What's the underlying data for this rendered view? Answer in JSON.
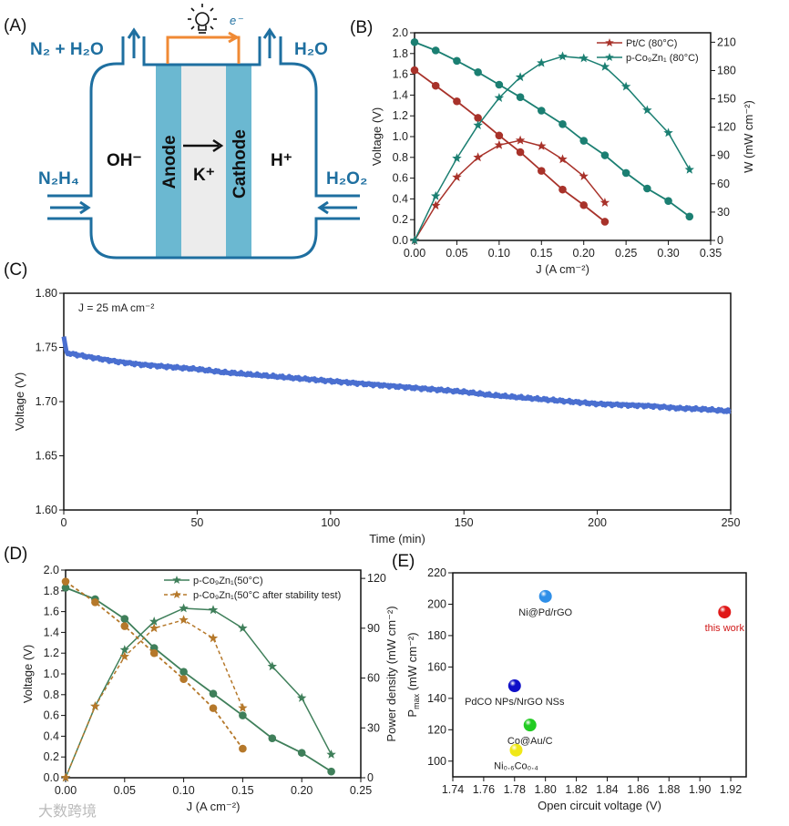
{
  "panel_labels": {
    "a": "(A)",
    "b": "(B)",
    "c": "(C)",
    "d": "(D)",
    "e": "(E)"
  },
  "diagram": {
    "outlet_left": "N₂ + H₂O",
    "outlet_right": "H₂O",
    "inlet_left": "N₂H₄",
    "inlet_right": "H₂O₂",
    "anolyte_ion": "OH⁻",
    "catholyte_ion": "H⁺",
    "membrane_ion": "K⁺",
    "anode": "Anode",
    "cathode": "Cathode",
    "electron": "e⁻",
    "colors": {
      "outline": "#1e6fa0",
      "electrode": "#6bb8d1",
      "membrane": "#ececec",
      "circuit": "#f08a34"
    }
  },
  "watermark": "大数跨境",
  "chart_data": [
    {
      "id": "B",
      "type": "line",
      "xlabel": "J (A cm⁻²)",
      "ylabel": "Voltage (V)",
      "y2label": "W (mW cm⁻²)",
      "xlim": [
        0,
        0.35
      ],
      "ylim": [
        0,
        2.0
      ],
      "y2lim": [
        0,
        220
      ],
      "xticks": [
        "0.00",
        "0.05",
        "0.10",
        "0.15",
        "0.20",
        "0.25",
        "0.30",
        "0.35"
      ],
      "yticks": [
        "0.0",
        "0.2",
        "0.4",
        "0.6",
        "0.8",
        "1.0",
        "1.2",
        "1.4",
        "1.6",
        "1.8",
        "2.0"
      ],
      "y2ticks": [
        "0",
        "30",
        "60",
        "90",
        "120",
        "150",
        "180",
        "210"
      ],
      "legend_position": "top-right",
      "series": [
        {
          "name": "Pt/C (80°C)",
          "color": "#a8322a",
          "dashed": false,
          "x": [
            0,
            0.025,
            0.05,
            0.075,
            0.1,
            0.125,
            0.15,
            0.175,
            0.2,
            0.225
          ],
          "voltage": [
            1.64,
            1.49,
            1.34,
            1.18,
            1.01,
            0.85,
            0.67,
            0.49,
            0.34,
            0.18
          ],
          "power": [
            0,
            37,
            67,
            88,
            101,
            106,
            100,
            86,
            68,
            40
          ]
        },
        {
          "name": "p-Co₉Zn₁ (80°C)",
          "color": "#1b7f72",
          "dashed": false,
          "x": [
            0,
            0.025,
            0.05,
            0.075,
            0.1,
            0.125,
            0.15,
            0.175,
            0.2,
            0.225,
            0.25,
            0.275,
            0.3,
            0.325
          ],
          "voltage": [
            1.91,
            1.83,
            1.73,
            1.62,
            1.5,
            1.38,
            1.25,
            1.12,
            0.96,
            0.82,
            0.65,
            0.5,
            0.38,
            0.23
          ],
          "power": [
            0,
            47,
            87,
            122,
            151,
            173,
            188,
            195,
            193,
            184,
            163,
            138,
            114,
            75
          ]
        }
      ]
    },
    {
      "id": "C",
      "type": "line",
      "annotation": "J = 25 mA cm⁻²",
      "xlabel": "Time (min)",
      "ylabel": "Voltage (V)",
      "xlim": [
        0,
        250
      ],
      "ylim": [
        1.6,
        1.8
      ],
      "xticks": [
        "0",
        "50",
        "100",
        "150",
        "200",
        "250"
      ],
      "yticks": [
        "1.60",
        "1.65",
        "1.70",
        "1.75",
        "1.80"
      ],
      "color": "#4a6fd0",
      "x": [
        0,
        1,
        10,
        20,
        30,
        40,
        50,
        60,
        70,
        80,
        90,
        100,
        110,
        120,
        130,
        140,
        150,
        160,
        170,
        180,
        190,
        200,
        210,
        220,
        230,
        240,
        250
      ],
      "y": [
        1.76,
        1.745,
        1.741,
        1.737,
        1.734,
        1.732,
        1.73,
        1.727,
        1.725,
        1.723,
        1.721,
        1.719,
        1.717,
        1.715,
        1.713,
        1.711,
        1.709,
        1.706,
        1.704,
        1.702,
        1.7,
        1.698,
        1.697,
        1.696,
        1.694,
        1.693,
        1.691
      ]
    },
    {
      "id": "D",
      "type": "line",
      "xlabel": "J (A cm⁻²)",
      "ylabel": "Voltage (V)",
      "y2label": "Power density (mW cm⁻²)",
      "xlim": [
        0,
        0.25
      ],
      "ylim": [
        0,
        2.0
      ],
      "y2lim": [
        0,
        125
      ],
      "xticks": [
        "0.00",
        "0.05",
        "0.10",
        "0.15",
        "0.20",
        "0.25"
      ],
      "yticks": [
        "0.0",
        "0.2",
        "0.4",
        "0.6",
        "0.8",
        "1.0",
        "1.2",
        "1.4",
        "1.6",
        "1.8",
        "2.0"
      ],
      "y2ticks": [
        "0",
        "30",
        "60",
        "90",
        "120"
      ],
      "legend_position": "top-right",
      "series": [
        {
          "name": "p-Co₉Zn₁(50°C)",
          "color": "#3f7f5a",
          "dashed": false,
          "x": [
            0,
            0.025,
            0.05,
            0.075,
            0.1,
            0.125,
            0.15,
            0.175,
            0.2,
            0.225
          ],
          "voltage": [
            1.83,
            1.72,
            1.53,
            1.25,
            1.02,
            0.81,
            0.6,
            0.38,
            0.24,
            0.06
          ],
          "power": [
            0,
            43,
            77,
            94,
            102,
            101,
            90,
            67,
            48,
            14
          ]
        },
        {
          "name": "p-Co₉Zn₁(50°C after stability test)",
          "color": "#b5782a",
          "dashed": true,
          "x": [
            0,
            0.025,
            0.05,
            0.075,
            0.1,
            0.125,
            0.15
          ],
          "voltage": [
            1.89,
            1.69,
            1.46,
            1.2,
            0.95,
            0.67,
            0.28
          ],
          "power": [
            0,
            43,
            73,
            90,
            95,
            84,
            42
          ]
        }
      ]
    },
    {
      "id": "E",
      "type": "scatter",
      "xlabel": "Open circuit voltage (V)",
      "ylabel_main": "P",
      "ylabel_sub": "max",
      "ylabel_unit": " (mW cm⁻²)",
      "xlim": [
        1.74,
        1.93
      ],
      "ylim": [
        90,
        220
      ],
      "xticks": [
        "1.74",
        "1.76",
        "1.78",
        "1.80",
        "1.82",
        "1.84",
        "1.86",
        "1.88",
        "1.90",
        "1.92"
      ],
      "yticks": [
        "100",
        "120",
        "140",
        "160",
        "180",
        "200",
        "220"
      ],
      "points": [
        {
          "label": "Ni@Pd/rGO",
          "x": 1.8,
          "y": 205,
          "color": "#2f8fe8",
          "label_color": "#222"
        },
        {
          "label": "this work",
          "x": 1.916,
          "y": 195,
          "color": "#e01818",
          "label_color": "#d01818"
        },
        {
          "label": "PdCO NPs/NrGO NSs",
          "x": 1.78,
          "y": 148,
          "color": "#1010c8",
          "label_color": "#222"
        },
        {
          "label": "Co@Au/C",
          "x": 1.79,
          "y": 123,
          "color": "#22cc22",
          "label_color": "#222"
        },
        {
          "label": "Ni₀.₆Co₀.₄",
          "x": 1.781,
          "y": 107,
          "color": "#f0e818",
          "label_color": "#222"
        }
      ]
    }
  ]
}
